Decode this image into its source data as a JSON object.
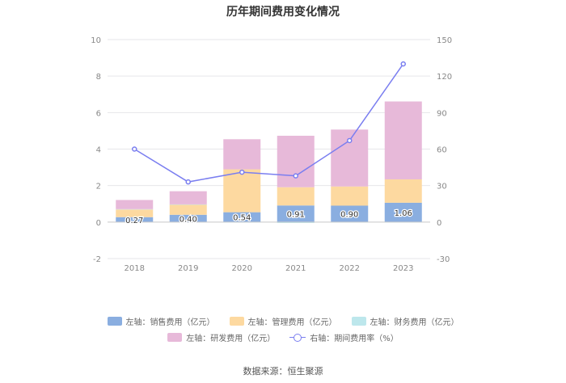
{
  "chart_data": {
    "type": "bar",
    "title": "历年期间费用变化情况",
    "categories": [
      "2018",
      "2019",
      "2020",
      "2021",
      "2022",
      "2023"
    ],
    "left_axis": {
      "ylim": [
        -2,
        10
      ],
      "ticks": [
        "10",
        "8",
        "6",
        "4",
        "2",
        "0",
        "-2"
      ],
      "tick_values": [
        10,
        8,
        6,
        4,
        2,
        0,
        -2
      ]
    },
    "right_axis": {
      "ylim": [
        -30,
        150
      ],
      "ticks": [
        "150",
        "120",
        "90",
        "60",
        "30",
        "0",
        "-30"
      ],
      "tick_values": [
        150,
        120,
        90,
        60,
        30,
        0,
        -30
      ]
    },
    "stacked": true,
    "series": [
      {
        "name": "左轴：销售费用（亿元）",
        "axis": "left",
        "color": "#8aaee0",
        "values": [
          0.27,
          0.4,
          0.54,
          0.91,
          0.9,
          1.06
        ],
        "labels": [
          "0.27",
          "0.40",
          "0.54",
          "0.91",
          "0.90",
          "1.06"
        ]
      },
      {
        "name": "左轴：管理费用（亿元）",
        "axis": "left",
        "color": "#fdd9a0",
        "values": [
          0.42,
          0.56,
          2.35,
          1.0,
          1.05,
          1.28
        ]
      },
      {
        "name": "左轴：财务费用（亿元）",
        "axis": "left",
        "color": "#bde7ec",
        "values": [
          0.02,
          0.01,
          -0.02,
          -0.05,
          -0.02,
          -0.02
        ]
      },
      {
        "name": "左轴：研发费用（亿元）",
        "axis": "left",
        "color": "#e7b9d9",
        "values": [
          0.5,
          0.72,
          1.65,
          2.82,
          3.12,
          4.27
        ]
      },
      {
        "name": "右轴：期间费用率（%）",
        "axis": "right",
        "type": "line",
        "color": "#7a7ef0",
        "values": [
          60,
          33,
          41,
          38,
          67,
          130
        ]
      }
    ],
    "legend": "bottom",
    "grid": true
  },
  "source": "数据来源：恒生聚源"
}
